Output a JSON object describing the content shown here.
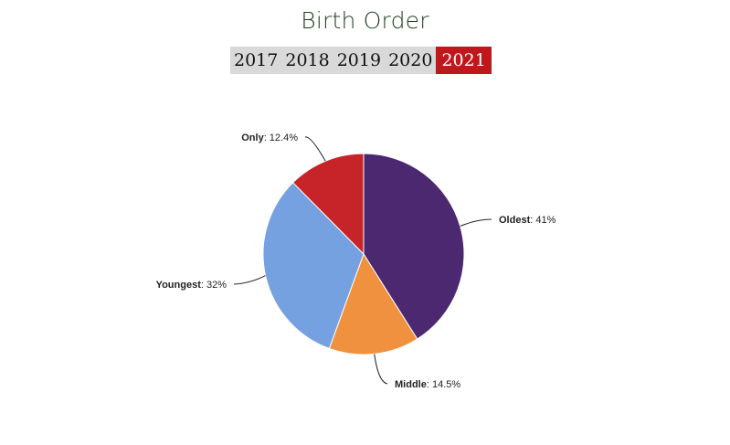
{
  "page": {
    "title": "Birth Order"
  },
  "year_tabs": {
    "items": [
      {
        "label": "2017",
        "active": false
      },
      {
        "label": "2018",
        "active": false
      },
      {
        "label": "2019",
        "active": false
      },
      {
        "label": "2020",
        "active": false
      },
      {
        "label": "2021",
        "active": true
      }
    ],
    "active_color": "#c0171d",
    "inactive_bg": "#d9d9d9"
  },
  "chart_data": {
    "type": "pie",
    "title": "Birth Order",
    "year": "2021",
    "slices": [
      {
        "label": "Oldest",
        "value": 41,
        "value_text": "41%",
        "color": "#4b2870"
      },
      {
        "label": "Middle",
        "value": 14.5,
        "value_text": "14.5%",
        "color": "#f0913f"
      },
      {
        "label": "Youngest",
        "value": 32,
        "value_text": "32%",
        "color": "#76a1e0"
      },
      {
        "label": "Only",
        "value": 12.4,
        "value_text": "12.4%",
        "color": "#c7242a"
      }
    ]
  }
}
